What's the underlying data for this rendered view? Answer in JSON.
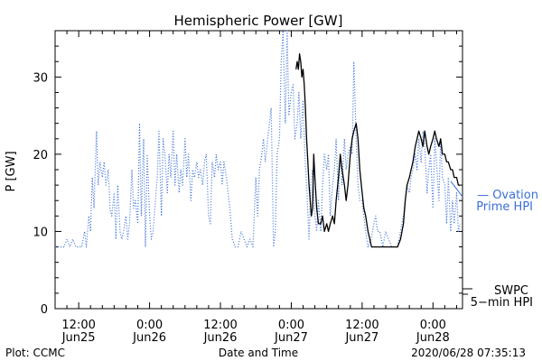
{
  "chart_data": {
    "type": "line",
    "title": "Hemispheric Power [GW]",
    "xlabel": "Date and Time",
    "ylabel": "P [GW]",
    "x_unit": "hours from 2020-06-25 00:00",
    "xlim": [
      8,
      77
    ],
    "ylim": [
      0,
      36
    ],
    "y_ticks": [
      0,
      10,
      20,
      30
    ],
    "x_ticks": [
      {
        "x": 12,
        "time": "12:00",
        "date": "Jun25"
      },
      {
        "x": 24,
        "time": "0:00",
        "date": "Jun26"
      },
      {
        "x": 36,
        "time": "12:00",
        "date": "Jun26"
      },
      {
        "x": 48,
        "time": "0:00",
        "date": "Jun27"
      },
      {
        "x": 60,
        "time": "12:00",
        "date": "Jun27"
      },
      {
        "x": 72,
        "time": "0:00",
        "date": "Jun28"
      }
    ],
    "series": [
      {
        "name": "Ovation Prime HPI",
        "label_lines": [
          "— Ovation",
          "Prime HPI"
        ],
        "color": "#3a6fd8",
        "style": "dotted",
        "points": [
          [
            8.0,
            8
          ],
          [
            9.5,
            8
          ],
          [
            10.0,
            9
          ],
          [
            10.5,
            8
          ],
          [
            11.0,
            9
          ],
          [
            11.5,
            8
          ],
          [
            12.5,
            8
          ],
          [
            13.0,
            10
          ],
          [
            13.3,
            8
          ],
          [
            13.7,
            12
          ],
          [
            14.0,
            10
          ],
          [
            14.3,
            17
          ],
          [
            14.6,
            13
          ],
          [
            15.0,
            23
          ],
          [
            15.3,
            16
          ],
          [
            15.6,
            19
          ],
          [
            16.0,
            17
          ],
          [
            16.3,
            19
          ],
          [
            16.6,
            16
          ],
          [
            17.0,
            18
          ],
          [
            17.3,
            13
          ],
          [
            17.6,
            12
          ],
          [
            18.0,
            15
          ],
          [
            18.3,
            9
          ],
          [
            18.6,
            16
          ],
          [
            19.0,
            10
          ],
          [
            19.3,
            9
          ],
          [
            19.6,
            10
          ],
          [
            20.0,
            12
          ],
          [
            20.3,
            9
          ],
          [
            20.6,
            11
          ],
          [
            21.0,
            18
          ],
          [
            21.3,
            13
          ],
          [
            21.6,
            14
          ],
          [
            22.0,
            11
          ],
          [
            22.3,
            24
          ],
          [
            22.6,
            12
          ],
          [
            23.0,
            22
          ],
          [
            23.3,
            8
          ],
          [
            23.6,
            20
          ],
          [
            24.0,
            12
          ],
          [
            24.3,
            9
          ],
          [
            24.6,
            10
          ],
          [
            25.0,
            14
          ],
          [
            25.3,
            17
          ],
          [
            25.6,
            23
          ],
          [
            26.0,
            12
          ],
          [
            26.3,
            22
          ],
          [
            26.6,
            20
          ],
          [
            27.0,
            15
          ],
          [
            27.3,
            20
          ],
          [
            27.6,
            17
          ],
          [
            28.0,
            23
          ],
          [
            28.3,
            16
          ],
          [
            28.6,
            20
          ],
          [
            29.0,
            15
          ],
          [
            29.3,
            18
          ],
          [
            29.6,
            16
          ],
          [
            30.0,
            22
          ],
          [
            30.3,
            17
          ],
          [
            30.6,
            20
          ],
          [
            31.0,
            14
          ],
          [
            31.3,
            18
          ],
          [
            31.6,
            17
          ],
          [
            32.0,
            19
          ],
          [
            32.3,
            17
          ],
          [
            32.6,
            18
          ],
          [
            33.0,
            16
          ],
          [
            33.3,
            19
          ],
          [
            33.6,
            20
          ],
          [
            34.0,
            12
          ],
          [
            34.3,
            11
          ],
          [
            34.6,
            19
          ],
          [
            35.0,
            17
          ],
          [
            35.3,
            20
          ],
          [
            35.6,
            18
          ],
          [
            36.0,
            19
          ],
          [
            36.3,
            16
          ],
          [
            36.6,
            19
          ],
          [
            37.0,
            17
          ],
          [
            37.3,
            15
          ],
          [
            37.6,
            13
          ],
          [
            38.0,
            9
          ],
          [
            38.5,
            8
          ],
          [
            39.0,
            8
          ],
          [
            39.5,
            10
          ],
          [
            40.0,
            9
          ],
          [
            40.5,
            8
          ],
          [
            41.0,
            9
          ],
          [
            41.5,
            8
          ],
          [
            42.0,
            17
          ],
          [
            42.3,
            12
          ],
          [
            42.6,
            18
          ],
          [
            43.0,
            20
          ],
          [
            43.3,
            22
          ],
          [
            43.6,
            19
          ],
          [
            44.0,
            22
          ],
          [
            44.3,
            24
          ],
          [
            44.6,
            26
          ],
          [
            45.0,
            8
          ],
          [
            45.3,
            10
          ],
          [
            45.6,
            20
          ],
          [
            46.0,
            22
          ],
          [
            46.3,
            32
          ],
          [
            46.6,
            36
          ],
          [
            47.0,
            24
          ],
          [
            47.3,
            36
          ],
          [
            47.6,
            25
          ],
          [
            48.0,
            28
          ],
          [
            48.3,
            29
          ],
          [
            48.6,
            22
          ],
          [
            49.0,
            24
          ],
          [
            49.3,
            28
          ],
          [
            49.6,
            22
          ],
          [
            50.0,
            27
          ],
          [
            50.3,
            20
          ],
          [
            50.6,
            16
          ],
          [
            51.0,
            9
          ],
          [
            51.3,
            16
          ],
          [
            51.6,
            18
          ],
          [
            52.0,
            12
          ],
          [
            52.3,
            10
          ],
          [
            52.6,
            14
          ],
          [
            53.0,
            10
          ],
          [
            53.3,
            16
          ],
          [
            53.6,
            20
          ],
          [
            54.0,
            18
          ],
          [
            54.3,
            20
          ],
          [
            54.6,
            12
          ],
          [
            55.0,
            16
          ],
          [
            55.3,
            18
          ],
          [
            55.6,
            22
          ],
          [
            56.0,
            14
          ],
          [
            56.3,
            20
          ],
          [
            56.6,
            16
          ],
          [
            57.0,
            22
          ],
          [
            57.3,
            18
          ],
          [
            57.6,
            20
          ],
          [
            58.0,
            21
          ],
          [
            58.3,
            20
          ],
          [
            58.6,
            32
          ],
          [
            59.0,
            22
          ],
          [
            59.3,
            16
          ],
          [
            59.6,
            14
          ],
          [
            60.0,
            14
          ],
          [
            60.3,
            12
          ],
          [
            60.6,
            10
          ],
          [
            61.0,
            8
          ],
          [
            61.5,
            9
          ],
          [
            62.0,
            11
          ],
          [
            62.3,
            12
          ],
          [
            62.6,
            10
          ],
          [
            63.0,
            10
          ],
          [
            63.5,
            8
          ],
          [
            64.0,
            10
          ],
          [
            64.5,
            9
          ],
          [
            65.0,
            8
          ],
          [
            65.5,
            8
          ],
          [
            66.0,
            8
          ],
          [
            66.5,
            10
          ],
          [
            67.0,
            12
          ],
          [
            67.3,
            14
          ],
          [
            67.6,
            16
          ],
          [
            68.0,
            15
          ],
          [
            68.3,
            17
          ],
          [
            68.6,
            18
          ],
          [
            69.0,
            20
          ],
          [
            69.3,
            18
          ],
          [
            69.6,
            22
          ],
          [
            70.0,
            19
          ],
          [
            70.3,
            23
          ],
          [
            70.6,
            21
          ],
          [
            71.0,
            15
          ],
          [
            71.3,
            18
          ],
          [
            71.6,
            20
          ],
          [
            72.0,
            13
          ],
          [
            72.3,
            22
          ],
          [
            72.6,
            19
          ],
          [
            73.0,
            14
          ],
          [
            73.3,
            22
          ],
          [
            73.6,
            17
          ],
          [
            74.0,
            16
          ],
          [
            74.3,
            11
          ],
          [
            74.6,
            17
          ],
          [
            75.0,
            10
          ],
          [
            75.3,
            14
          ],
          [
            75.6,
            11
          ],
          [
            76.0,
            15
          ],
          [
            76.3,
            10
          ],
          [
            76.6,
            11
          ]
        ]
      },
      {
        "name": "SWPC 5-min HPI",
        "label_lines": [
          "SWPC",
          "5−min HPI"
        ],
        "color": "#000000",
        "style": "solid",
        "points": [
          [
            48.8,
            31
          ],
          [
            49.0,
            32
          ],
          [
            49.2,
            31
          ],
          [
            49.4,
            33
          ],
          [
            49.6,
            32
          ],
          [
            49.8,
            30
          ],
          [
            50.0,
            31
          ],
          [
            50.2,
            29
          ],
          [
            50.4,
            26
          ],
          [
            50.6,
            22
          ],
          [
            50.8,
            19
          ],
          [
            51.0,
            16
          ],
          [
            51.2,
            14
          ],
          [
            51.4,
            12
          ],
          [
            51.6,
            13
          ],
          [
            51.8,
            20
          ],
          [
            52.0,
            17
          ],
          [
            52.3,
            13
          ],
          [
            52.6,
            11
          ],
          [
            53.0,
            11
          ],
          [
            53.3,
            12
          ],
          [
            53.6,
            10
          ],
          [
            54.0,
            11
          ],
          [
            54.3,
            10
          ],
          [
            54.6,
            11
          ],
          [
            55.0,
            12
          ],
          [
            55.3,
            11
          ],
          [
            55.6,
            14
          ],
          [
            56.0,
            17
          ],
          [
            56.3,
            20
          ],
          [
            56.6,
            18
          ],
          [
            57.0,
            16
          ],
          [
            57.3,
            14
          ],
          [
            57.6,
            16
          ],
          [
            58.0,
            20
          ],
          [
            58.3,
            22
          ],
          [
            58.6,
            23
          ],
          [
            59.0,
            24
          ],
          [
            59.3,
            22
          ],
          [
            59.6,
            18
          ],
          [
            60.0,
            15
          ],
          [
            60.3,
            13
          ],
          [
            60.6,
            12
          ],
          [
            61.0,
            10
          ],
          [
            61.3,
            9
          ],
          [
            61.6,
            8
          ],
          [
            62.0,
            8
          ],
          [
            63.0,
            8
          ],
          [
            64.0,
            8
          ],
          [
            65.0,
            8
          ],
          [
            66.0,
            8
          ],
          [
            66.5,
            9
          ],
          [
            67.0,
            11
          ],
          [
            67.3,
            14
          ],
          [
            67.6,
            16
          ],
          [
            68.0,
            17
          ],
          [
            68.3,
            18
          ],
          [
            68.6,
            19
          ],
          [
            69.0,
            21
          ],
          [
            69.3,
            22
          ],
          [
            69.6,
            23
          ],
          [
            70.0,
            22
          ],
          [
            70.3,
            21
          ],
          [
            70.6,
            23
          ],
          [
            71.0,
            21
          ],
          [
            71.3,
            20
          ],
          [
            71.6,
            21
          ],
          [
            72.0,
            22
          ],
          [
            72.3,
            23
          ],
          [
            72.6,
            22
          ],
          [
            73.0,
            21
          ],
          [
            73.3,
            22
          ],
          [
            73.6,
            20
          ],
          [
            74.0,
            20
          ],
          [
            74.3,
            19
          ],
          [
            74.6,
            19
          ],
          [
            75.0,
            18
          ],
          [
            75.3,
            18
          ],
          [
            75.6,
            17
          ],
          [
            76.0,
            17
          ],
          [
            76.3,
            16
          ],
          [
            76.6,
            16
          ]
        ]
      }
    ]
  },
  "footer": {
    "plot_credit": "Plot: CCMC",
    "timestamp": "2020/06/28 07:35:13"
  }
}
